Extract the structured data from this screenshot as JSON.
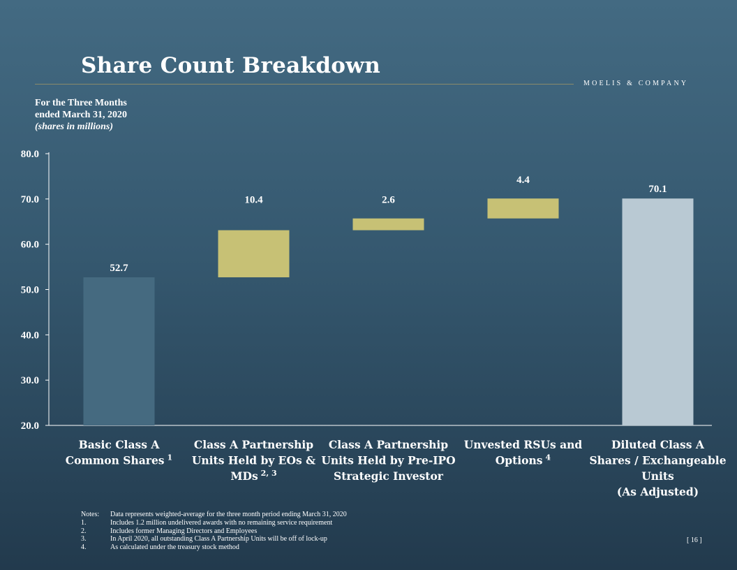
{
  "title": "Share Count Breakdown",
  "logo": "MOELIS & COMPANY",
  "subtitle": {
    "line1": "For the Three Months",
    "line2": "ended March 31, 2020",
    "line3": "(shares in millions)"
  },
  "colors": {
    "basic_bar": "#456a80",
    "increment_bar": "#c7c175",
    "total_bar": "#b9c9d3",
    "axis": "#ffffff"
  },
  "chart_data": {
    "type": "bar",
    "subtype": "waterfall",
    "ylim": [
      20.0,
      80.0
    ],
    "yticks": [
      "80.0",
      "70.0",
      "60.0",
      "50.0",
      "40.0",
      "30.0",
      "20.0"
    ],
    "grid": false,
    "categories": [
      {
        "lines": [
          "Basic Class A",
          "Common Shares"
        ],
        "sup": "1"
      },
      {
        "lines": [
          "Class A Partnership",
          "Units Held by EOs &",
          "MDs"
        ],
        "sup": "2, 3"
      },
      {
        "lines": [
          "Class A Partnership",
          "Units Held by Pre-IPO",
          "Strategic Investor"
        ],
        "sup": ""
      },
      {
        "lines": [
          "Unvested RSUs and",
          "Options"
        ],
        "sup": "4"
      },
      {
        "lines": [
          "Diluted Class A",
          "Shares / Exchangeable",
          "Units",
          "(As Adjusted)"
        ],
        "sup": ""
      }
    ],
    "bars": [
      {
        "kind": "base",
        "start": 20.0,
        "end": 52.7,
        "label": "52.7"
      },
      {
        "kind": "increment",
        "start": 52.7,
        "end": 63.1,
        "label": "10.4"
      },
      {
        "kind": "increment",
        "start": 63.1,
        "end": 65.7,
        "label": "2.6"
      },
      {
        "kind": "increment",
        "start": 65.7,
        "end": 70.1,
        "label": "4.4"
      },
      {
        "kind": "total",
        "start": 20.0,
        "end": 70.1,
        "label": "70.1"
      }
    ]
  },
  "notes": {
    "heading": "Notes:",
    "main": "Data represents weighted-average for the three month period ending March 31, 2020",
    "items": [
      {
        "num": "1.",
        "text": "Includes 1.2 million undelivered awards with no remaining service requirement"
      },
      {
        "num": "2.",
        "text": "Includes former Managing Directors and Employees"
      },
      {
        "num": "3.",
        "text": "In April 2020, all outstanding Class A Partnership Units will be off of lock-up"
      },
      {
        "num": "4.",
        "text": "As calculated under the treasury stock method"
      }
    ]
  },
  "page_number": "[ 16 ]"
}
